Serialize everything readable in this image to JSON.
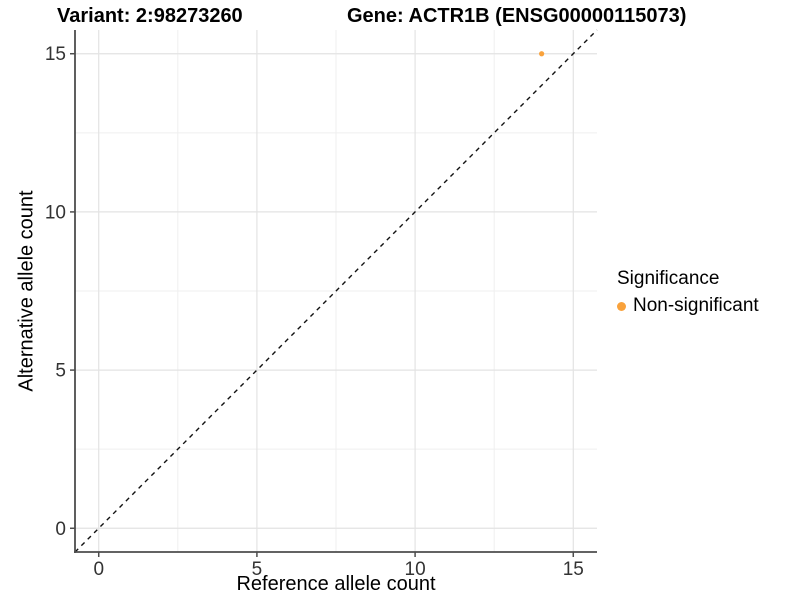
{
  "chart_data": {
    "type": "scatter",
    "title_left": "Variant: 2:98273260",
    "title_right": "Gene: ACTR1B (ENSG00000115073)",
    "xlabel": "Reference allele count",
    "ylabel": "Alternative allele count",
    "xlim": [
      -0.75,
      15.75
    ],
    "ylim": [
      -0.75,
      15.75
    ],
    "x_major_ticks": [
      0,
      5,
      10,
      15
    ],
    "y_major_ticks": [
      0,
      5,
      10,
      15
    ],
    "x_minor_gridlines": [
      2.5,
      7.5,
      12.5
    ],
    "y_minor_gridlines": [
      2.5,
      7.5,
      12.5
    ],
    "grid": "major and minor gridlines, white panel background",
    "reference_line": {
      "type": "identity",
      "slope": 1,
      "intercept": 0,
      "style": "dashed",
      "color": "#111111"
    },
    "series": [
      {
        "name": "Non-significant",
        "color": "#F9A23C",
        "points": [
          {
            "x": 14,
            "y": 15
          }
        ]
      }
    ],
    "legend": {
      "title": "Significance",
      "position": "right",
      "entries": [
        {
          "label": "Non-significant",
          "color": "#F9A23C"
        }
      ]
    }
  },
  "colors": {
    "background": "#FFFFFF",
    "grid_major": "#E3E3E3",
    "grid_minor": "#EFEFEF",
    "axis_line": "#4D4D4D",
    "tick_label": "#333333"
  }
}
